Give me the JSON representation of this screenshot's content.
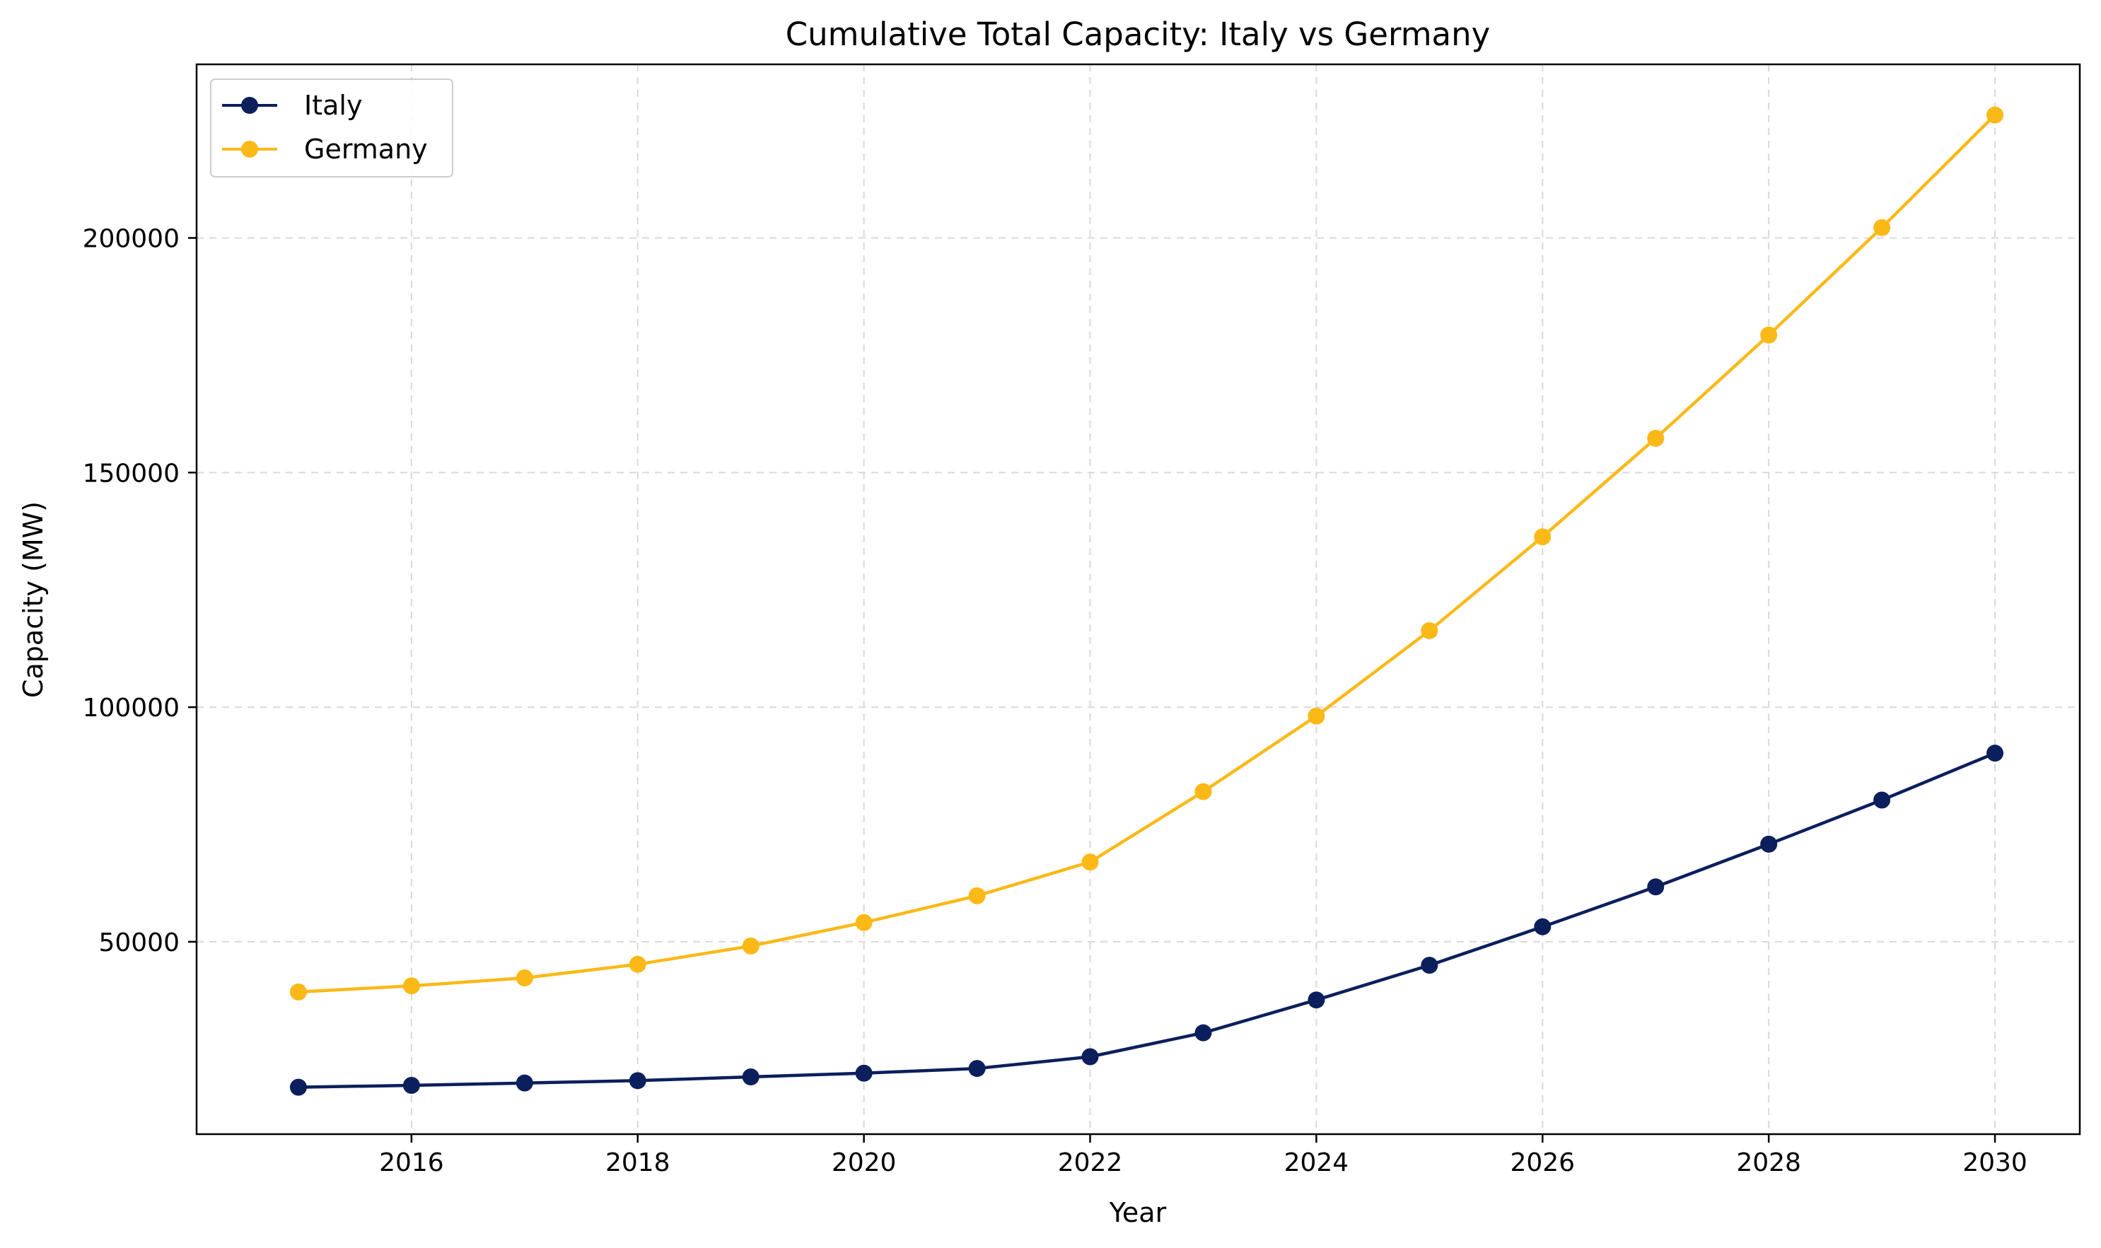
{
  "chart_data": {
    "type": "line",
    "title": "Cumulative Total Capacity: Italy vs Germany",
    "xlabel": "Year",
    "ylabel": "Capacity (MW)",
    "x": [
      2015,
      2016,
      2017,
      2018,
      2019,
      2020,
      2021,
      2022,
      2023,
      2024,
      2025,
      2026,
      2027,
      2028,
      2029,
      2030
    ],
    "xlim": [
      2014.1,
      2030.75
    ],
    "ylim": [
      9000,
      237000
    ],
    "xticks": [
      2016,
      2018,
      2020,
      2022,
      2024,
      2026,
      2028,
      2030
    ],
    "yticks": [
      50000,
      100000,
      150000,
      200000
    ],
    "grid": true,
    "legend_position": "top-left",
    "series": [
      {
        "name": "Italy",
        "color": "#0b1f5c",
        "marker": "circle",
        "values": [
          19000,
          19400,
          19900,
          20400,
          21200,
          22000,
          23000,
          25500,
          30600,
          37600,
          45000,
          53200,
          61700,
          70800,
          80200,
          90200
        ]
      },
      {
        "name": "Germany",
        "color": "#fbb917",
        "marker": "circle",
        "values": [
          39300,
          40600,
          42300,
          45200,
          49100,
          54100,
          59800,
          67000,
          82000,
          98100,
          116300,
          136300,
          157300,
          179300,
          202200,
          226200
        ]
      }
    ]
  }
}
